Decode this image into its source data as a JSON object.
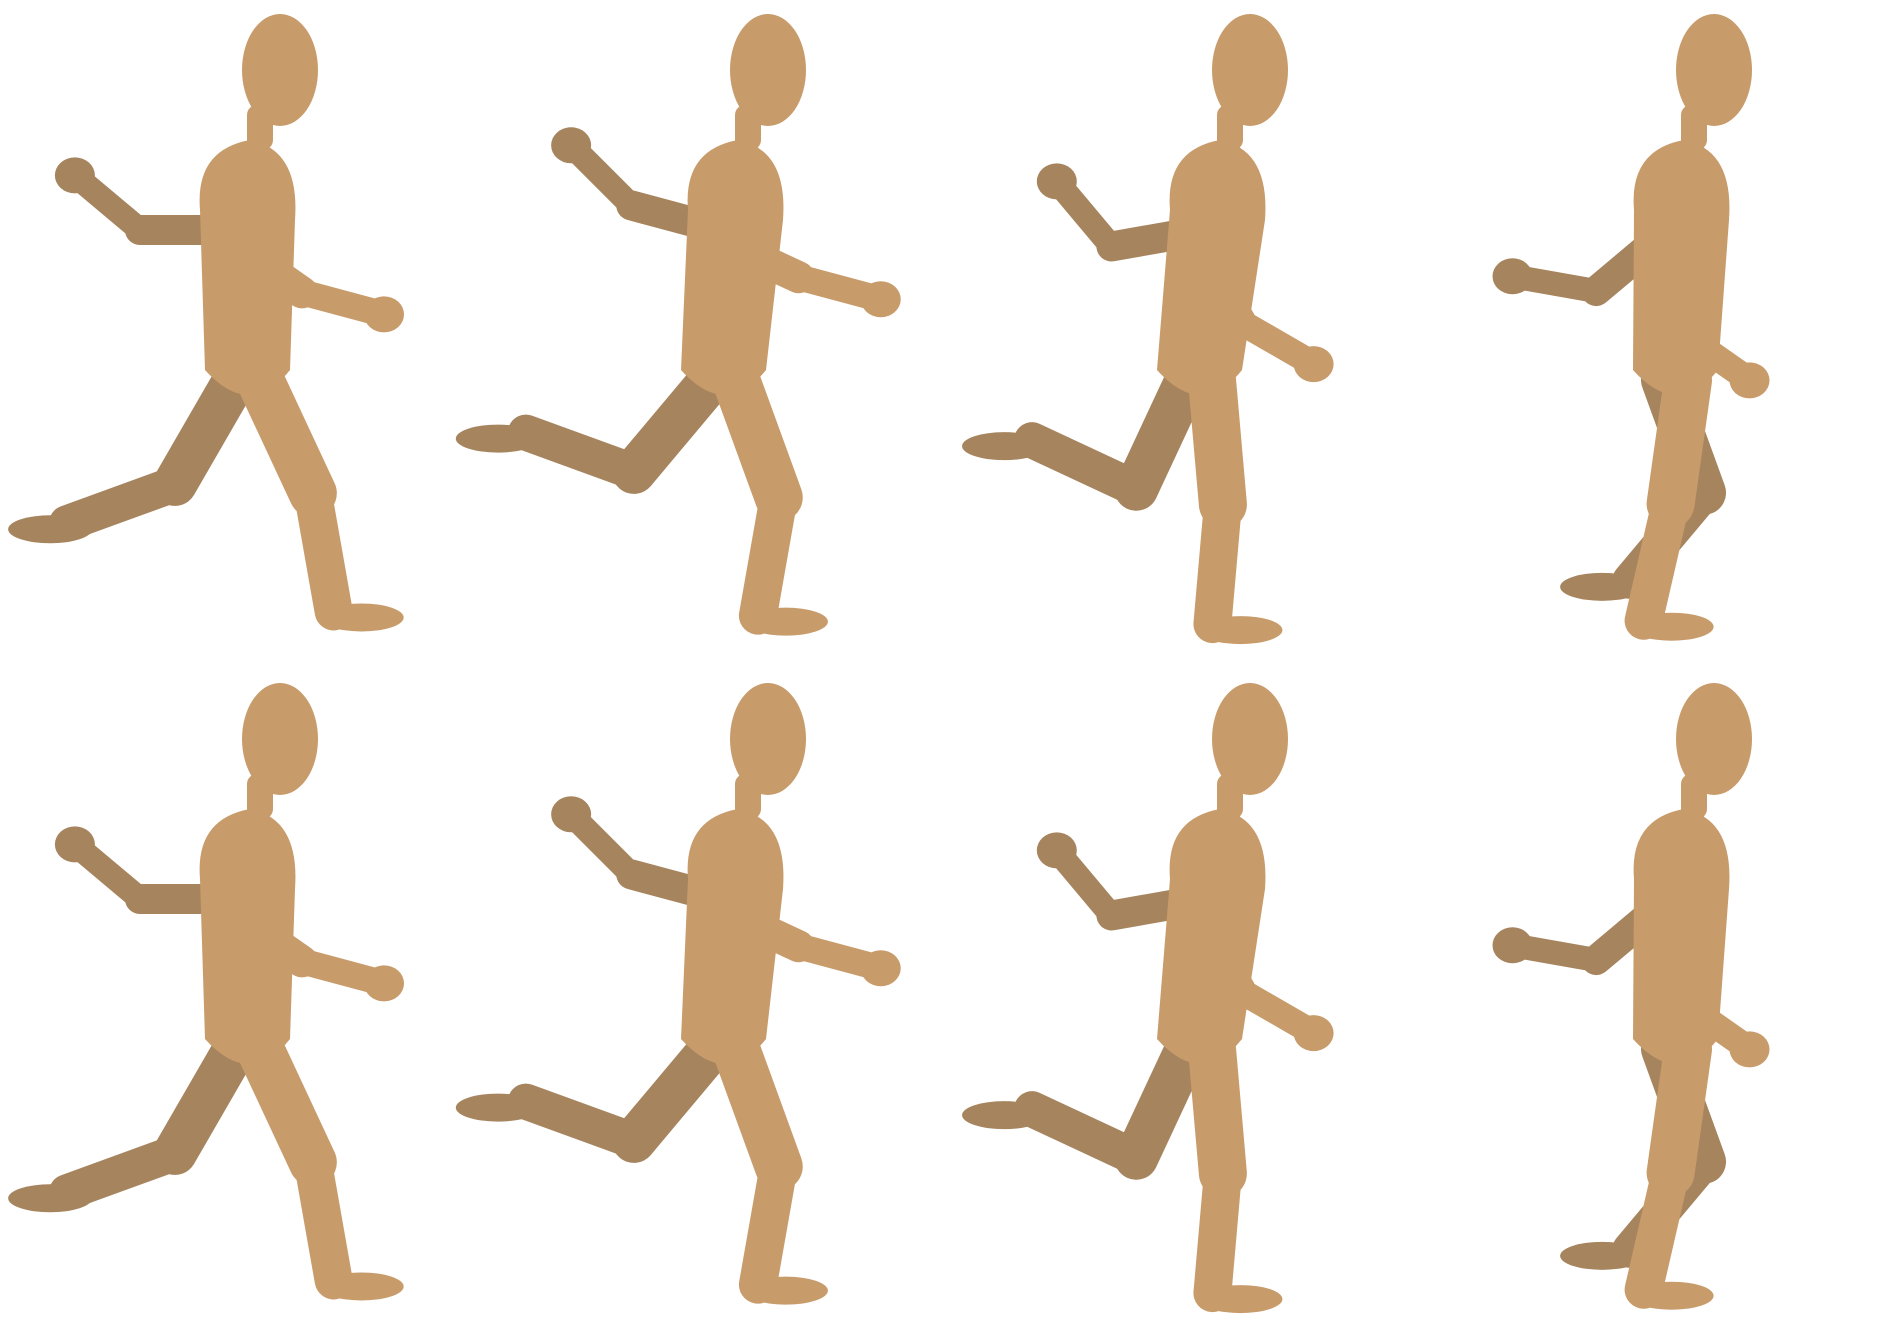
{
  "image": {
    "description_free": true,
    "colors": {
      "background": "#ffffff",
      "near_limb": "#c89b6b",
      "far_limb": "#a6845e"
    },
    "rows": 2,
    "columns": 4,
    "frames": [
      {
        "row": 1,
        "col": 1,
        "pose": "walk-contact"
      },
      {
        "row": 1,
        "col": 2,
        "pose": "walk-down"
      },
      {
        "row": 1,
        "col": 3,
        "pose": "walk-passing"
      },
      {
        "row": 1,
        "col": 4,
        "pose": "walk-up"
      },
      {
        "row": 2,
        "col": 1,
        "pose": "walk-contact"
      },
      {
        "row": 2,
        "col": 2,
        "pose": "walk-down"
      },
      {
        "row": 2,
        "col": 3,
        "pose": "walk-passing"
      },
      {
        "row": 2,
        "col": 4,
        "pose": "walk-up"
      }
    ]
  }
}
